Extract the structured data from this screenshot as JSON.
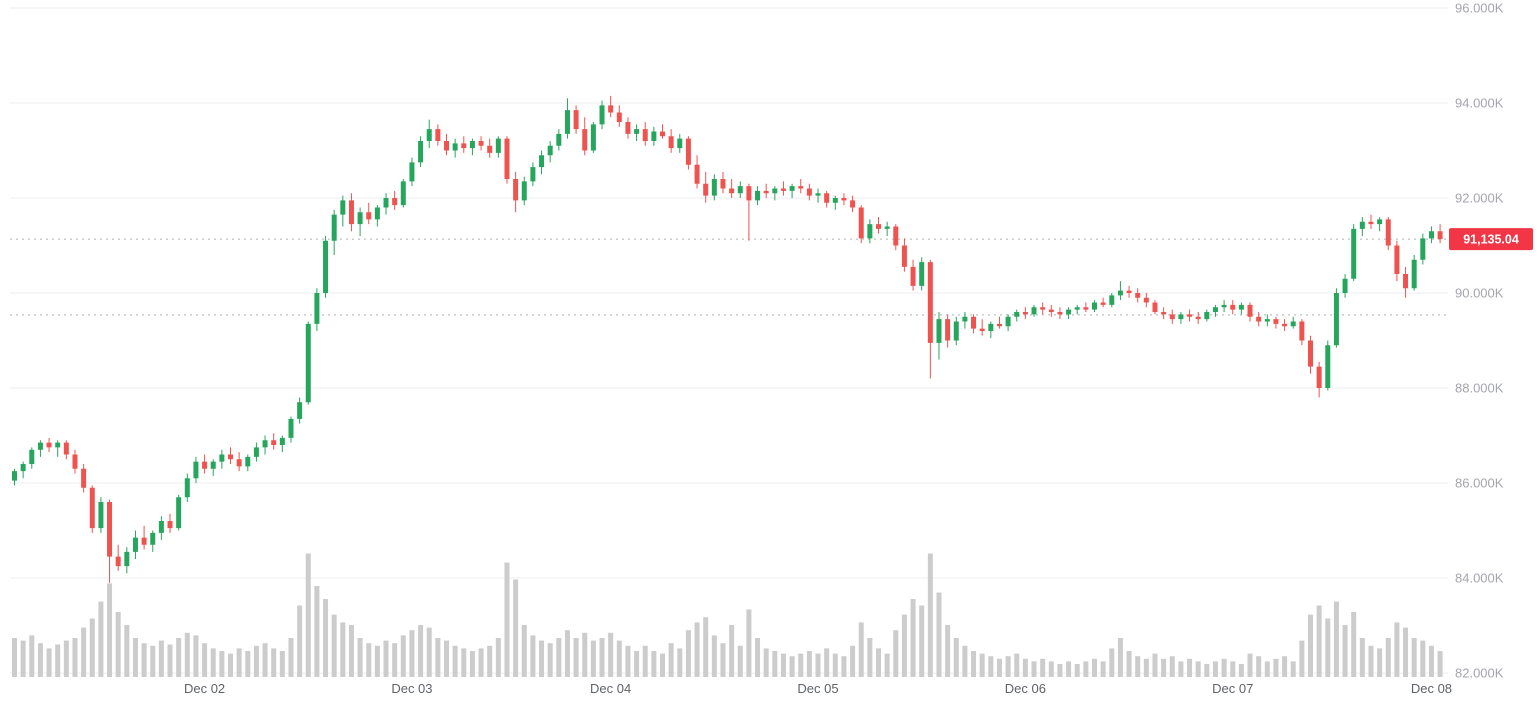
{
  "chart_data": {
    "type": "candlestick",
    "title": "",
    "legend_position": "none",
    "grid": true,
    "last_price_label": "91,135.04",
    "last_price_value": 91135.04,
    "colors": {
      "up": "#26a65d",
      "down": "#ef5350",
      "volume": "#cccccc",
      "grid": "#ededf0",
      "dotted": "#b0b0b5",
      "y_label": "#a5a5ad",
      "x_label": "#5f6368",
      "price_tag_bg": "#f23645",
      "price_tag_text": "#ffffff",
      "background": "#ffffff"
    },
    "y_axis": {
      "min": 82000,
      "max": 96000,
      "ticks": [
        {
          "value": 96000,
          "label": "96.000K"
        },
        {
          "value": 94000,
          "label": "94.000K"
        },
        {
          "value": 92000,
          "label": "92.000K"
        },
        {
          "value": 90000,
          "label": "90.000K"
        },
        {
          "value": 88000,
          "label": "88.000K"
        },
        {
          "value": 86000,
          "label": "86.000K"
        },
        {
          "value": 84000,
          "label": "84.000K"
        },
        {
          "value": 82000,
          "label": "82.000K"
        }
      ]
    },
    "x_axis": {
      "labels": [
        {
          "label": "Dec 02",
          "index": 22
        },
        {
          "label": "Dec 03",
          "index": 46
        },
        {
          "label": "Dec 04",
          "index": 69
        },
        {
          "label": "Dec 05",
          "index": 93
        },
        {
          "label": "Dec 06",
          "index": 117
        },
        {
          "label": "Dec 07",
          "index": 141
        },
        {
          "label": "Dec 08",
          "index": 164
        }
      ]
    },
    "dotted_levels": [
      91135.04,
      89540
    ],
    "candles_format": [
      "open",
      "high",
      "low",
      "close",
      "volume"
    ],
    "candles": [
      [
        86050,
        86300,
        85950,
        86250,
        30
      ],
      [
        86250,
        86450,
        86100,
        86400,
        28
      ],
      [
        86400,
        86750,
        86300,
        86700,
        32
      ],
      [
        86700,
        86900,
        86550,
        86850,
        26
      ],
      [
        86850,
        86950,
        86650,
        86750,
        22
      ],
      [
        86750,
        86900,
        86550,
        86850,
        25
      ],
      [
        86850,
        86900,
        86500,
        86600,
        28
      ],
      [
        86600,
        86700,
        86200,
        86300,
        30
      ],
      [
        86300,
        86400,
        85800,
        85900,
        38
      ],
      [
        85900,
        85950,
        84950,
        85050,
        45
      ],
      [
        85050,
        85700,
        84950,
        85600,
        58
      ],
      [
        85600,
        85650,
        83900,
        84450,
        72
      ],
      [
        84450,
        84700,
        84150,
        84250,
        50
      ],
      [
        84250,
        84650,
        84100,
        84550,
        40
      ],
      [
        84550,
        85000,
        84400,
        84850,
        30
      ],
      [
        84850,
        85100,
        84600,
        84700,
        26
      ],
      [
        84700,
        85000,
        84550,
        84950,
        24
      ],
      [
        84950,
        85300,
        84800,
        85200,
        28
      ],
      [
        85200,
        85350,
        84950,
        85050,
        25
      ],
      [
        85050,
        85750,
        85000,
        85700,
        30
      ],
      [
        85700,
        86200,
        85600,
        86100,
        34
      ],
      [
        86100,
        86550,
        86000,
        86450,
        32
      ],
      [
        86450,
        86600,
        86200,
        86300,
        26
      ],
      [
        86300,
        86500,
        86150,
        86450,
        22
      ],
      [
        86450,
        86700,
        86300,
        86600,
        20
      ],
      [
        86600,
        86750,
        86400,
        86500,
        18
      ],
      [
        86500,
        86650,
        86250,
        86350,
        22
      ],
      [
        86350,
        86600,
        86250,
        86550,
        20
      ],
      [
        86550,
        86850,
        86450,
        86750,
        24
      ],
      [
        86750,
        87000,
        86600,
        86900,
        26
      ],
      [
        86900,
        87050,
        86700,
        86800,
        22
      ],
      [
        86800,
        87000,
        86650,
        86950,
        20
      ],
      [
        86950,
        87400,
        86850,
        87350,
        30
      ],
      [
        87350,
        87800,
        87250,
        87700,
        55
      ],
      [
        87700,
        89400,
        87650,
        89350,
        95
      ],
      [
        89350,
        90100,
        89200,
        90000,
        70
      ],
      [
        90000,
        91200,
        89900,
        91100,
        60
      ],
      [
        91100,
        91750,
        90800,
        91650,
        48
      ],
      [
        91650,
        92050,
        91400,
        91950,
        42
      ],
      [
        91950,
        92100,
        91300,
        91450,
        40
      ],
      [
        91450,
        91800,
        91200,
        91700,
        30
      ],
      [
        91700,
        91900,
        91450,
        91550,
        26
      ],
      [
        91550,
        91850,
        91400,
        91800,
        24
      ],
      [
        91800,
        92100,
        91650,
        92000,
        28
      ],
      [
        92000,
        92150,
        91750,
        91850,
        26
      ],
      [
        91850,
        92400,
        91800,
        92350,
        32
      ],
      [
        92350,
        92850,
        92250,
        92750,
        36
      ],
      [
        92750,
        93300,
        92650,
        93200,
        40
      ],
      [
        93200,
        93650,
        93050,
        93450,
        38
      ],
      [
        93450,
        93550,
        93100,
        93200,
        30
      ],
      [
        93200,
        93350,
        92900,
        93000,
        28
      ],
      [
        93000,
        93250,
        92850,
        93150,
        24
      ],
      [
        93150,
        93300,
        92950,
        93050,
        22
      ],
      [
        93050,
        93250,
        92900,
        93200,
        20
      ],
      [
        93200,
        93300,
        93000,
        93100,
        22
      ],
      [
        93100,
        93250,
        92850,
        92950,
        24
      ],
      [
        92950,
        93300,
        92850,
        93250,
        30
      ],
      [
        93250,
        93300,
        92300,
        92400,
        88
      ],
      [
        92400,
        92550,
        91700,
        91950,
        75
      ],
      [
        91950,
        92450,
        91850,
        92350,
        40
      ],
      [
        92350,
        92750,
        92250,
        92650,
        32
      ],
      [
        92650,
        93000,
        92500,
        92900,
        28
      ],
      [
        92900,
        93200,
        92750,
        93100,
        26
      ],
      [
        93100,
        93450,
        93000,
        93350,
        30
      ],
      [
        93350,
        94100,
        93250,
        93850,
        36
      ],
      [
        93850,
        93950,
        93350,
        93450,
        30
      ],
      [
        93450,
        93700,
        92900,
        93000,
        34
      ],
      [
        93000,
        93600,
        92950,
        93550,
        28
      ],
      [
        93550,
        94050,
        93450,
        93950,
        30
      ],
      [
        93950,
        94150,
        93700,
        93800,
        34
      ],
      [
        93800,
        93950,
        93500,
        93600,
        28
      ],
      [
        93600,
        93700,
        93250,
        93350,
        24
      ],
      [
        93350,
        93550,
        93200,
        93450,
        20
      ],
      [
        93450,
        93600,
        93100,
        93200,
        24
      ],
      [
        93200,
        93500,
        93100,
        93400,
        20
      ],
      [
        93400,
        93550,
        93250,
        93300,
        18
      ],
      [
        93300,
        93450,
        92950,
        93050,
        26
      ],
      [
        93050,
        93350,
        92950,
        93250,
        22
      ],
      [
        93250,
        93300,
        92600,
        92700,
        36
      ],
      [
        92700,
        92900,
        92200,
        92300,
        42
      ],
      [
        92300,
        92550,
        91900,
        92050,
        46
      ],
      [
        92050,
        92500,
        91950,
        92400,
        32
      ],
      [
        92400,
        92550,
        92100,
        92200,
        26
      ],
      [
        92200,
        92400,
        92000,
        92100,
        40
      ],
      [
        92100,
        92350,
        92000,
        92250,
        24
      ],
      [
        92250,
        92300,
        91100,
        91950,
        52
      ],
      [
        91950,
        92250,
        91850,
        92150,
        30
      ],
      [
        92150,
        92300,
        92000,
        92100,
        22
      ],
      [
        92100,
        92250,
        91950,
        92200,
        20
      ],
      [
        92200,
        92350,
        92050,
        92150,
        18
      ],
      [
        92150,
        92300,
        92000,
        92250,
        16
      ],
      [
        92250,
        92400,
        92100,
        92200,
        18
      ],
      [
        92200,
        92300,
        91950,
        92050,
        20
      ],
      [
        92050,
        92200,
        91900,
        92100,
        18
      ],
      [
        92100,
        92150,
        91800,
        91900,
        22
      ],
      [
        91900,
        92050,
        91750,
        92000,
        18
      ],
      [
        92000,
        92100,
        91850,
        91950,
        16
      ],
      [
        91950,
        92050,
        91700,
        91800,
        24
      ],
      [
        91800,
        91850,
        91050,
        91150,
        42
      ],
      [
        91150,
        91550,
        91050,
        91450,
        30
      ],
      [
        91450,
        91600,
        91250,
        91350,
        22
      ],
      [
        91350,
        91500,
        91200,
        91400,
        18
      ],
      [
        91400,
        91450,
        90900,
        91000,
        36
      ],
      [
        91000,
        91150,
        90450,
        90550,
        48
      ],
      [
        90550,
        90700,
        90050,
        90150,
        60
      ],
      [
        90150,
        90750,
        90050,
        90650,
        55
      ],
      [
        90650,
        90700,
        88200,
        88950,
        95
      ],
      [
        88950,
        89600,
        88600,
        89450,
        65
      ],
      [
        89450,
        89550,
        88850,
        89000,
        40
      ],
      [
        89000,
        89500,
        88900,
        89400,
        30
      ],
      [
        89400,
        89600,
        89250,
        89500,
        24
      ],
      [
        89500,
        89550,
        89150,
        89250,
        20
      ],
      [
        89250,
        89450,
        89100,
        89200,
        18
      ],
      [
        89200,
        89400,
        89050,
        89350,
        16
      ],
      [
        89350,
        89500,
        89250,
        89300,
        14
      ],
      [
        89300,
        89550,
        89200,
        89500,
        16
      ],
      [
        89500,
        89650,
        89400,
        89600,
        18
      ],
      [
        89600,
        89700,
        89450,
        89550,
        14
      ],
      [
        89550,
        89750,
        89500,
        89700,
        12
      ],
      [
        89700,
        89800,
        89550,
        89650,
        14
      ],
      [
        89650,
        89750,
        89500,
        89600,
        12
      ],
      [
        89600,
        89700,
        89450,
        89550,
        10
      ],
      [
        89550,
        89700,
        89450,
        89650,
        12
      ],
      [
        89650,
        89750,
        89550,
        89700,
        10
      ],
      [
        89700,
        89800,
        89600,
        89650,
        12
      ],
      [
        89650,
        89850,
        89600,
        89800,
        14
      ],
      [
        89800,
        89900,
        89700,
        89750,
        12
      ],
      [
        89750,
        90000,
        89700,
        89950,
        22
      ],
      [
        89950,
        90250,
        89850,
        90050,
        30
      ],
      [
        90050,
        90150,
        89900,
        90000,
        20
      ],
      [
        90000,
        90100,
        89800,
        89900,
        16
      ],
      [
        89900,
        90000,
        89700,
        89800,
        14
      ],
      [
        89800,
        89850,
        89550,
        89600,
        18
      ],
      [
        89600,
        89700,
        89450,
        89550,
        14
      ],
      [
        89550,
        89650,
        89350,
        89450,
        16
      ],
      [
        89450,
        89600,
        89350,
        89550,
        12
      ],
      [
        89550,
        89650,
        89400,
        89500,
        14
      ],
      [
        89500,
        89600,
        89350,
        89450,
        12
      ],
      [
        89450,
        89650,
        89400,
        89600,
        10
      ],
      [
        89600,
        89750,
        89500,
        89700,
        12
      ],
      [
        89700,
        89850,
        89600,
        89750,
        14
      ],
      [
        89750,
        89850,
        89550,
        89650,
        12
      ],
      [
        89650,
        89800,
        89550,
        89750,
        10
      ],
      [
        89750,
        89800,
        89400,
        89500,
        18
      ],
      [
        89500,
        89600,
        89300,
        89400,
        16
      ],
      [
        89400,
        89550,
        89300,
        89450,
        12
      ],
      [
        89450,
        89500,
        89250,
        89350,
        14
      ],
      [
        89350,
        89450,
        89200,
        89300,
        16
      ],
      [
        89300,
        89500,
        89250,
        89400,
        12
      ],
      [
        89400,
        89450,
        88900,
        89000,
        28
      ],
      [
        89000,
        89100,
        88300,
        88450,
        48
      ],
      [
        88450,
        88550,
        87800,
        88000,
        55
      ],
      [
        88000,
        89000,
        87950,
        88900,
        45
      ],
      [
        88900,
        90100,
        88850,
        90000,
        58
      ],
      [
        90000,
        90400,
        89900,
        90300,
        40
      ],
      [
        90300,
        91450,
        90250,
        91350,
        50
      ],
      [
        91350,
        91600,
        91200,
        91500,
        30
      ],
      [
        91500,
        91650,
        91350,
        91450,
        24
      ],
      [
        91450,
        91600,
        91300,
        91550,
        22
      ],
      [
        91550,
        91600,
        90900,
        91000,
        30
      ],
      [
        91000,
        91100,
        90250,
        90400,
        42
      ],
      [
        90400,
        90550,
        89900,
        90100,
        38
      ],
      [
        90100,
        90800,
        90050,
        90700,
        30
      ],
      [
        90700,
        91250,
        90600,
        91150,
        28
      ],
      [
        91150,
        91400,
        91050,
        91300,
        24
      ],
      [
        91300,
        91450,
        91050,
        91135,
        20
      ]
    ]
  }
}
